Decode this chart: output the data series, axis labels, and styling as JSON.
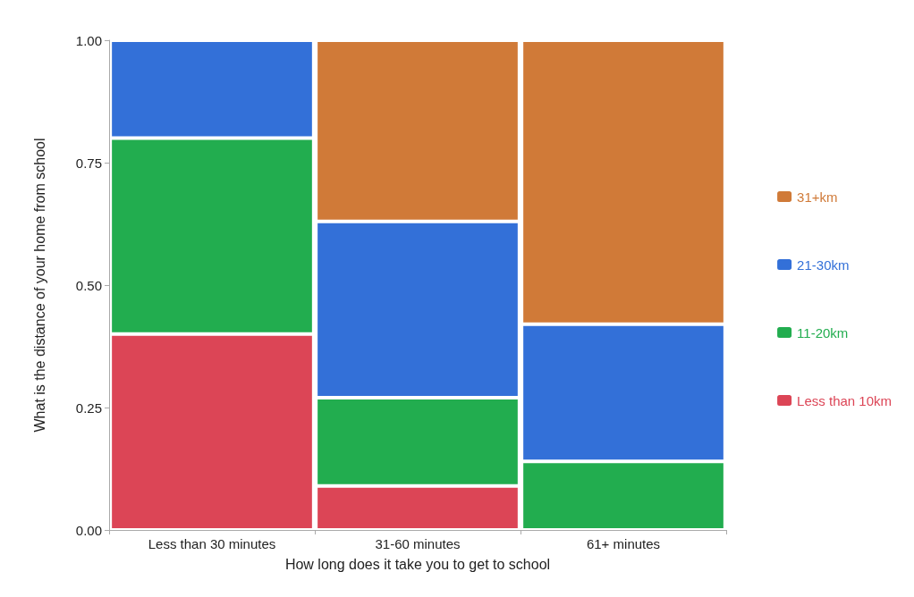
{
  "chart_data": {
    "type": "bar",
    "stacked": true,
    "xlabel": "How long does it take you to get to school",
    "ylabel": "What is the distance of your home from school",
    "categories": [
      "Less than 30 minutes",
      "31-60 minutes",
      "61+ minutes"
    ],
    "series": [
      {
        "name": "Less than 10km",
        "color": "#dc4556",
        "values": [
          0.4,
          0.09,
          null
        ]
      },
      {
        "name": "11-20km",
        "color": "#22ad4f",
        "values": [
          0.4,
          0.18,
          0.14
        ]
      },
      {
        "name": "21-30km",
        "color": "#3370d8",
        "values": [
          0.2,
          0.36,
          0.28
        ]
      },
      {
        "name": "31+km",
        "color": "#d07a38",
        "values": [
          null,
          0.37,
          0.58
        ]
      }
    ],
    "ylim": [
      0,
      1
    ],
    "yticks": [
      {
        "value": 0,
        "label": "0.00"
      },
      {
        "value": 0.25,
        "label": "0.25"
      },
      {
        "value": 0.5,
        "label": "0.50"
      },
      {
        "value": 0.75,
        "label": "0.75"
      },
      {
        "value": 1,
        "label": "1.00"
      }
    ],
    "grid": false,
    "legend": "right"
  }
}
